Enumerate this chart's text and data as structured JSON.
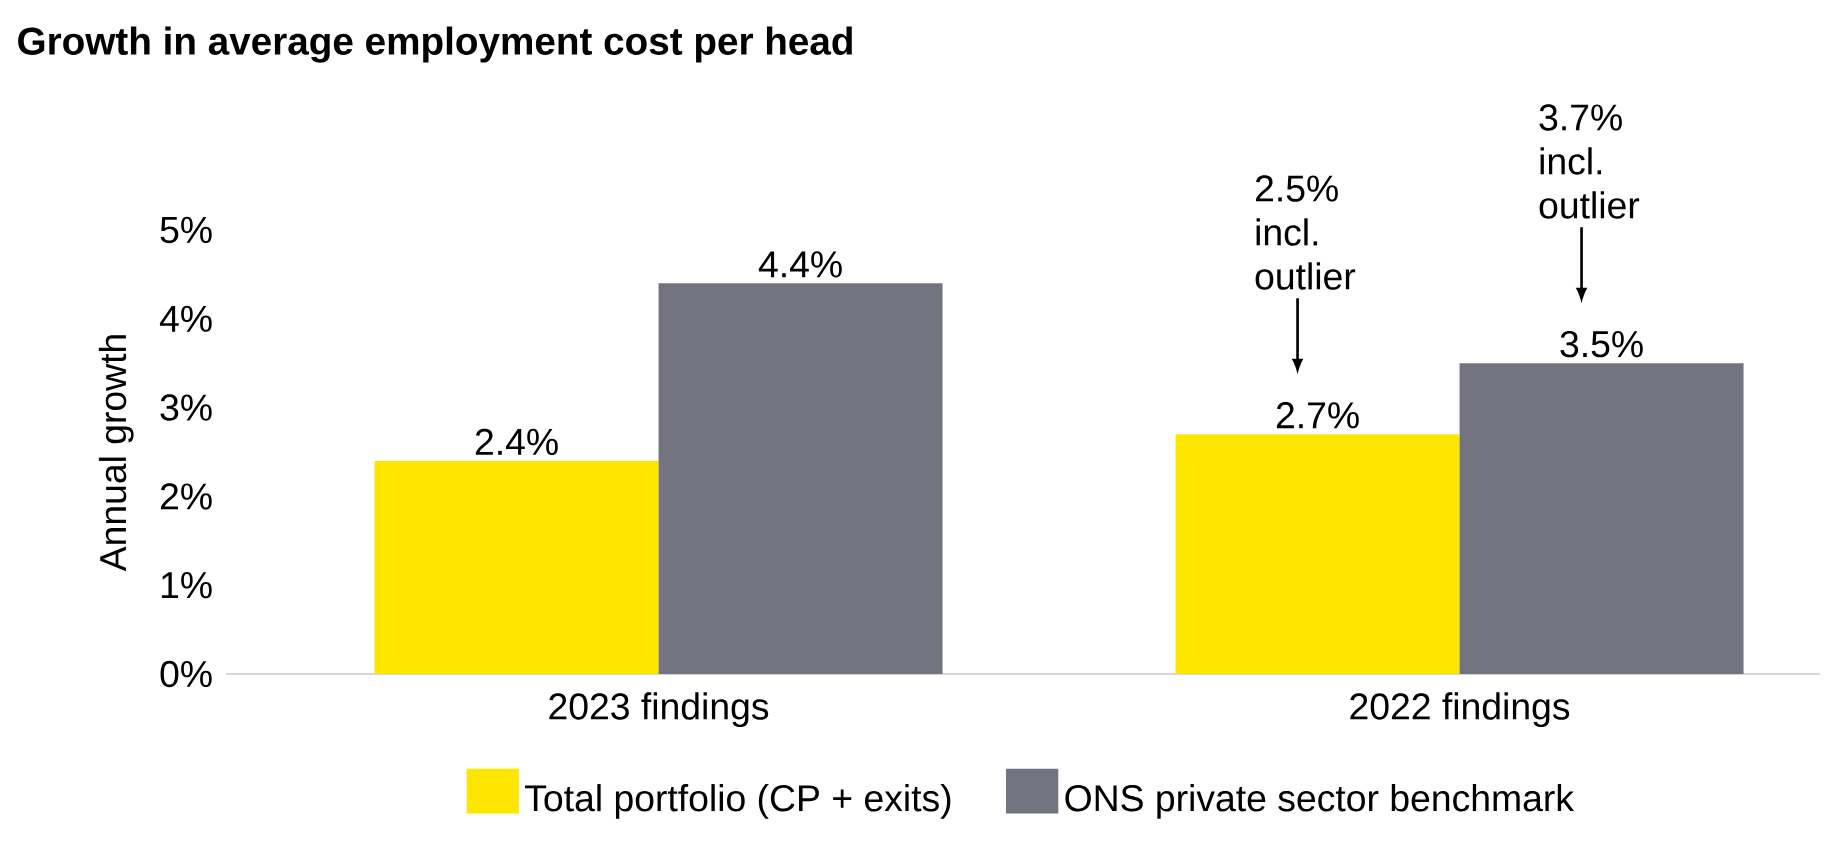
{
  "chart_data": {
    "type": "bar",
    "title": "Growth in average employment cost per head",
    "ylabel": "Annual growth",
    "categories": [
      "2023 findings",
      "2022 findings"
    ],
    "series": [
      {
        "name": "Total portfolio (CP + exits)",
        "color": "#ffe600",
        "values": [
          2.4,
          2.7
        ],
        "value_labels": [
          "2.4%",
          "2.7%"
        ]
      },
      {
        "name": "ONS private sector benchmark",
        "color": "#747480",
        "values": [
          4.4,
          3.5
        ],
        "value_labels": [
          "4.4%",
          "3.5%"
        ]
      }
    ],
    "ylim": [
      0,
      5
    ],
    "yticks": [
      {
        "value": 0,
        "label": "0%"
      },
      {
        "value": 1,
        "label": "1%"
      },
      {
        "value": 2,
        "label": "2%"
      },
      {
        "value": 3,
        "label": "3%"
      },
      {
        "value": 4,
        "label": "4%"
      },
      {
        "value": 5,
        "label": "5%"
      }
    ],
    "annotations": [
      "2.5% incl. outlier",
      "3.7% incl. outlier"
    ],
    "legend": "bottom"
  }
}
